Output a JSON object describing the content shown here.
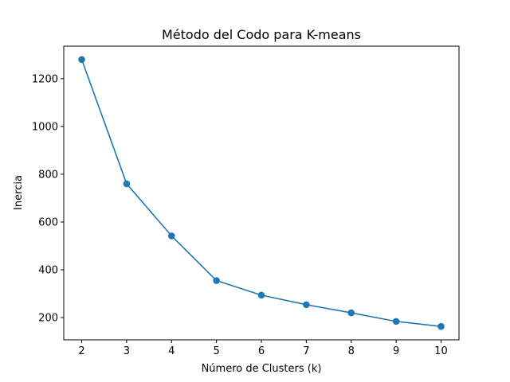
{
  "chart_data": {
    "type": "line",
    "title": "Método del Codo para K-means",
    "xlabel": "Número de Clusters (k)",
    "ylabel": "Inercia",
    "x": [
      2,
      3,
      4,
      5,
      6,
      7,
      8,
      9,
      10
    ],
    "series": [
      {
        "values": [
          1280,
          760,
          542,
          355,
          294,
          254,
          220,
          184,
          163
        ],
        "color": "#1f77b4",
        "marker": "circle"
      }
    ],
    "xlim": [
      1.6,
      10.4
    ],
    "ylim": [
      107,
      1336
    ],
    "xticks": [
      2,
      3,
      4,
      5,
      6,
      7,
      8,
      9,
      10
    ],
    "yticks": [
      200,
      400,
      600,
      800,
      1000,
      1200
    ],
    "xtick_labels": [
      "2",
      "3",
      "4",
      "5",
      "6",
      "7",
      "8",
      "9",
      "10"
    ],
    "ytick_labels": [
      "200",
      "400",
      "600",
      "800",
      "1000",
      "1200"
    ],
    "grid": false,
    "legend": "none"
  }
}
